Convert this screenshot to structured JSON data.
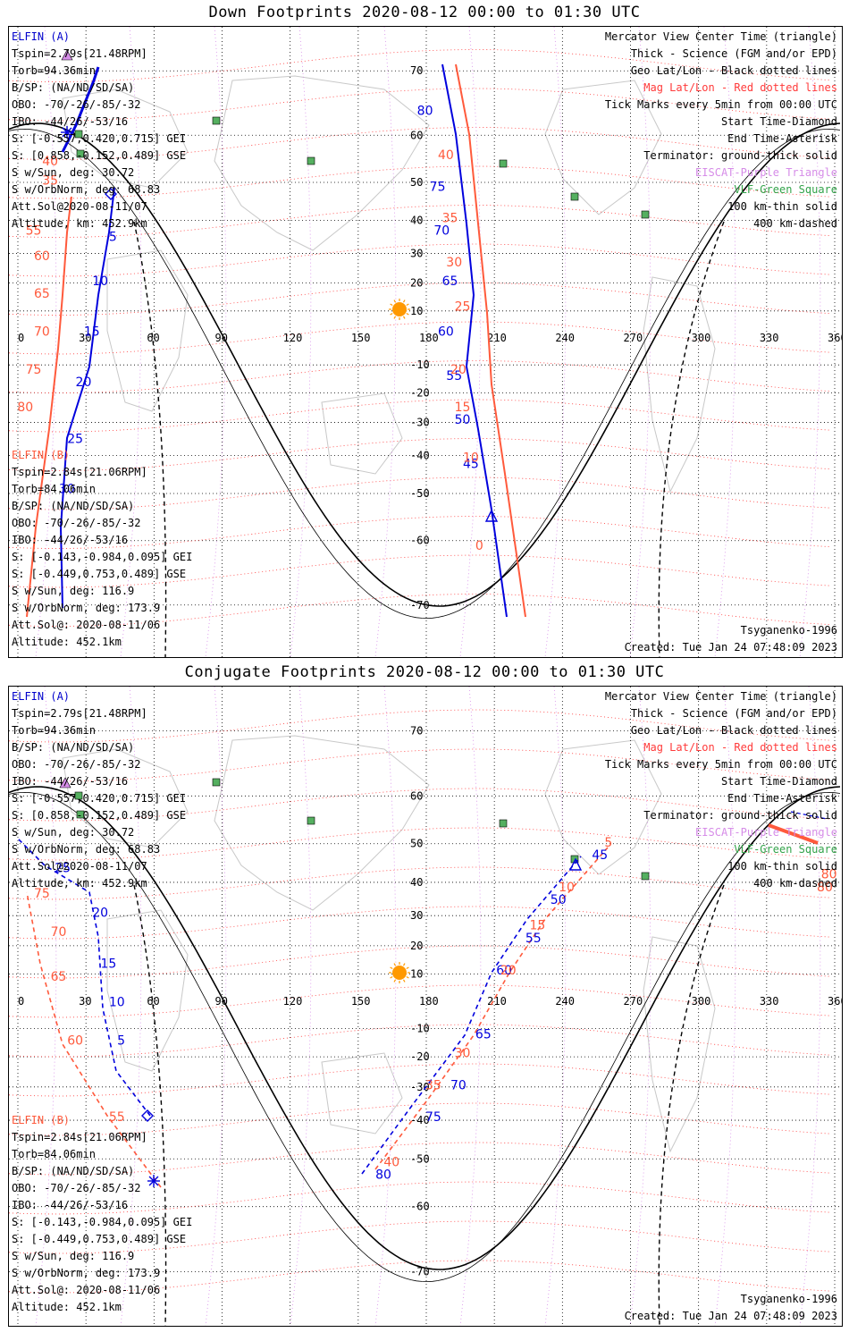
{
  "panels": [
    {
      "id": "down",
      "title": "Down Footprints 2020-08-12 00:00 to 01:30 UTC",
      "elfin_a": {
        "name": "ELFIN (A)",
        "lines": [
          "Tspin=2.79s[21.48RPM]",
          "Torb=94.36min",
          "B/SP: (NA/ND/SD/SA)",
          "OBO: -70/-26/-85/-32",
          "IBO: -44/26/-53/16",
          "S: [-0.557,0.420,0.715] GEI",
          "S: [0.858,-0.152,0.489] GSE",
          "S w/Sun, deg: 30.72",
          "S w/OrbNorm, deg: 68.83",
          "Att.Sol@2020-08-11/07",
          "Altitude, km: 452.9km"
        ]
      },
      "elfin_b": {
        "name": "ELFIN (B)",
        "lines": [
          "Tspin=2.84s[21.06RPM]",
          "Torb=84.06min",
          "B/SP: (NA/ND/SD/SA)",
          "OBO: -70/-26/-85/-32",
          "IBO: -44/26/-53/16",
          "S: [-0.143,-0.984,0.095] GEI",
          "S: [-0.449,0.753,0.489] GSE",
          "S w/Sun, deg: 116.9",
          "S w/OrbNorm, deg: 173.9",
          "Att.Sol@: 2020-08-11/06",
          "Altitude: 452.1km"
        ]
      },
      "a_marks": [
        [
          "5",
          0.12,
          0.34
        ],
        [
          "10",
          0.1,
          0.41
        ],
        [
          "15",
          0.09,
          0.49
        ],
        [
          "20",
          0.08,
          0.57
        ],
        [
          "25",
          0.07,
          0.66
        ],
        [
          "30",
          0.06,
          0.74
        ],
        [
          "45",
          0.545,
          0.7
        ],
        [
          "50",
          0.535,
          0.63
        ],
        [
          "55",
          0.525,
          0.56
        ],
        [
          "60",
          0.515,
          0.49
        ],
        [
          "65",
          0.52,
          0.41
        ],
        [
          "70",
          0.51,
          0.33
        ],
        [
          "75",
          0.505,
          0.26
        ],
        [
          "80",
          0.49,
          0.14
        ]
      ],
      "b_marks": [
        [
          "35",
          0.04,
          0.25
        ],
        [
          "40",
          0.04,
          0.22
        ],
        [
          "55",
          0.02,
          0.33
        ],
        [
          "60",
          0.03,
          0.37
        ],
        [
          "65",
          0.03,
          0.43
        ],
        [
          "70",
          0.03,
          0.49
        ],
        [
          "75",
          0.02,
          0.55
        ],
        [
          "80",
          0.01,
          0.61
        ],
        [
          "0",
          0.56,
          0.83
        ],
        [
          "10",
          0.545,
          0.69
        ],
        [
          "15",
          0.535,
          0.61
        ],
        [
          "20",
          0.53,
          0.55
        ],
        [
          "25",
          0.535,
          0.45
        ],
        [
          "30",
          0.525,
          0.38
        ],
        [
          "35",
          0.52,
          0.31
        ],
        [
          "40",
          0.515,
          0.21
        ]
      ]
    },
    {
      "id": "conjugate",
      "title": "Conjugate Footprints 2020-08-12 00:00 to 01:30 UTC",
      "elfin_a": {
        "name": "ELFIN (A)",
        "lines": [
          "Tspin=2.79s[21.48RPM]",
          "Torb=94.36min",
          "B/SP: (NA/ND/SD/SA)",
          "OBO: -70/-26/-85/-32",
          "IBO: -44/26/-53/16",
          "S: [-0.557,0.420,0.715] GEI",
          "S: [0.858,-0.152,0.489] GSE",
          "S w/Sun, deg: 30.72",
          "S w/OrbNorm, deg: 68.83",
          "Att.Sol@2020-08-11/07",
          "Altitude, km: 452.9km"
        ]
      },
      "elfin_b": {
        "name": "ELFIN (B)",
        "lines": [
          "Tspin=2.84s[21.06RPM]",
          "Torb=84.06min",
          "B/SP: (NA/ND/SD/SA)",
          "OBO: -70/-26/-85/-32",
          "IBO: -44/26/-53/16",
          "S: [-0.143,-0.984,0.095] GEI",
          "S: [-0.449,0.753,0.489] GSE",
          "S w/Sun, deg: 116.9",
          "S w/OrbNorm, deg: 173.9",
          "Att.Sol@: 2020-08-11/06",
          "Altitude: 452.1km"
        ]
      },
      "a_marks": [
        [
          "5",
          0.13,
          0.56
        ],
        [
          "10",
          0.12,
          0.5
        ],
        [
          "15",
          0.11,
          0.44
        ],
        [
          "20",
          0.1,
          0.36
        ],
        [
          "25",
          0.055,
          0.29
        ],
        [
          "45",
          0.7,
          0.27
        ],
        [
          "50",
          0.65,
          0.34
        ],
        [
          "55",
          0.62,
          0.4
        ],
        [
          "60",
          0.585,
          0.45
        ],
        [
          "65",
          0.56,
          0.55
        ],
        [
          "70",
          0.53,
          0.63
        ],
        [
          "75",
          0.5,
          0.68
        ],
        [
          "80",
          0.44,
          0.77
        ]
      ],
      "b_marks": [
        [
          "55",
          0.12,
          0.68
        ],
        [
          "60",
          0.07,
          0.56
        ],
        [
          "65",
          0.05,
          0.46
        ],
        [
          "70",
          0.05,
          0.39
        ],
        [
          "75",
          0.03,
          0.33
        ],
        [
          "5",
          0.715,
          0.25
        ],
        [
          "10",
          0.66,
          0.32
        ],
        [
          "15",
          0.625,
          0.38
        ],
        [
          "20",
          0.59,
          0.45
        ],
        [
          "30",
          0.535,
          0.58
        ],
        [
          "35",
          0.5,
          0.63
        ],
        [
          "40",
          0.45,
          0.75
        ],
        [
          "80",
          0.975,
          0.3
        ],
        [
          "80",
          0.97,
          0.32
        ]
      ]
    }
  ],
  "legend": [
    {
      "text": "Mercator View Center Time (triangle)",
      "color": "#000000"
    },
    {
      "text": "Thick - Science (FGM and/or EPD)",
      "color": "#000000"
    },
    {
      "text": "Geo Lat/Lon - Black dotted lines",
      "color": "#000000"
    },
    {
      "text": "Mag Lat/Lon - Red dotted lines",
      "color": "#ff3a3a"
    },
    {
      "text": "Tick Marks every 5min from 00:00 UTC",
      "color": "#000000"
    },
    {
      "text": "Start Time-Diamond",
      "color": "#000000"
    },
    {
      "text": "End Time-Asterisk",
      "color": "#000000"
    },
    {
      "text": "Terminator: ground-thick solid",
      "color": "#000000"
    },
    {
      "text": "EISCAT-Purple Triangle",
      "color": "#d68ce8"
    },
    {
      "text": "VLF-Green Square",
      "color": "#33a34a"
    },
    {
      "text": "100 km-thin solid",
      "color": "#000000"
    },
    {
      "text": "400 km-dashed",
      "color": "#000000"
    }
  ],
  "model": "Tsyganenko-1996",
  "created": "Created: Tue Jan 24 07:48:09 2023",
  "lon_ticks": [
    "0",
    "30",
    "60",
    "90",
    "120",
    "150",
    "180",
    "210",
    "240",
    "270",
    "300",
    "330",
    "360"
  ],
  "lat_ticks": [
    "70",
    "60",
    "50",
    "40",
    "30",
    "20",
    "10",
    "-10",
    "-20",
    "-30",
    "-40",
    "-50",
    "-60",
    "-70"
  ],
  "colors": {
    "elfin_a": "#0000dd",
    "elfin_b": "#ff5a3c",
    "mag_grid": "#ff3a3a",
    "geo_grid": "#000000",
    "eiscat": "#d68ce8",
    "vlf": "#33a34a",
    "sun": "#ff9900"
  }
}
